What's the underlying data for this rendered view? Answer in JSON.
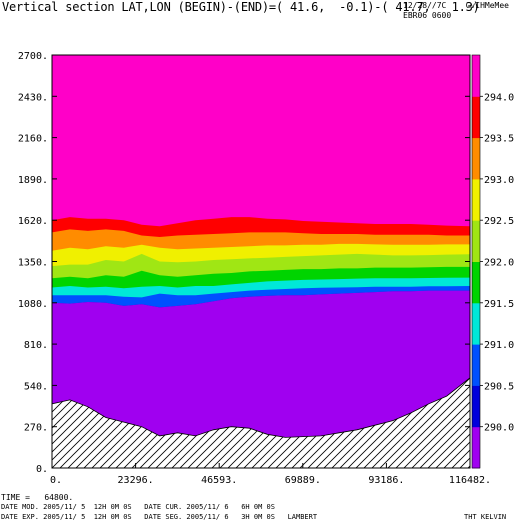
{
  "header": {
    "title": "Vertical section LAT,LON (BEGIN)-(END)=( 41.6,  -0.1)-( 41.7,   1.3)",
    "stamp_line1": "12/28//7C    CvIHMeMee",
    "stamp_line2": "EBR06 0600"
  },
  "footer": {
    "time": "TIME =   64800.",
    "line1": "DATE MOD. 2005/11/ 5  12H 0M 0S   DATE CUR. 2005/11/ 6   6H 0M 0S",
    "line2": "DATE EXP. 2005/11/ 5  12H 0M 0S   DATE SEG. 2005/11/ 6   3H 0M 0S   LAMBERT",
    "field": "THT KELVIN"
  },
  "chart_data": {
    "type": "area",
    "title": "Vertical section LAT,LON (BEGIN)-(END)=( 41.6,  -0.1)-( 41.7,   1.3)",
    "xlabel": "",
    "ylabel": "",
    "xlim": [
      0,
      116482
    ],
    "ylim": [
      0,
      2700
    ],
    "x_ticks": [
      "0.",
      "23296.",
      "46593.",
      "69889.",
      "93186.",
      "116482."
    ],
    "x_tick_values": [
      0,
      23296,
      46593,
      69889,
      93186,
      116482
    ],
    "y_ticks": [
      "0.",
      "270.",
      "540.",
      "810.",
      "1080.",
      "1350.",
      "1620.",
      "1890.",
      "2160.",
      "2430.",
      "2700."
    ],
    "y_tick_values": [
      0,
      270,
      540,
      810,
      1080,
      1350,
      1620,
      1890,
      2160,
      2430,
      2700
    ],
    "colorbar": {
      "labels": [
        "290.0",
        "290.5",
        "291.0",
        "291.5",
        "292.0",
        "292.5",
        "293.0",
        "293.5",
        "294.0"
      ],
      "levels": [
        290.0,
        290.5,
        291.0,
        291.5,
        292.0,
        292.5,
        293.0,
        293.5,
        294.0
      ],
      "colors": [
        "#a000f0",
        "#0000dc",
        "#0050ff",
        "#00e8d8",
        "#00d400",
        "#a0e614",
        "#f0f000",
        "#ff8c00",
        "#ff0000",
        "#ff00c8"
      ]
    },
    "x": [
      0,
      5000,
      10000,
      15000,
      20000,
      25000,
      30000,
      35000,
      40000,
      45000,
      50000,
      55000,
      60000,
      65000,
      70000,
      75000,
      80000,
      85000,
      90000,
      95000,
      100000,
      105000,
      110000,
      116482
    ],
    "terrain": [
      420,
      445,
      400,
      330,
      300,
      270,
      210,
      230,
      210,
      250,
      270,
      260,
      220,
      200,
      205,
      210,
      230,
      250,
      280,
      310,
      360,
      420,
      470,
      590
    ],
    "contours": [
      {
        "level": 290.0,
        "heights": [
          1080,
          1075,
          1085,
          1080,
          1060,
          1070,
          1050,
          1060,
          1070,
          1090,
          1110,
          1120,
          1125,
          1130,
          1130,
          1135,
          1140,
          1145,
          1150,
          1155,
          1155,
          1160,
          1160,
          1160
        ]
      },
      {
        "level": 290.5,
        "heights": [
          1130,
          1130,
          1130,
          1130,
          1120,
          1115,
          1140,
          1130,
          1130,
          1140,
          1150,
          1160,
          1165,
          1170,
          1175,
          1178,
          1180,
          1182,
          1185,
          1185,
          1185,
          1188,
          1188,
          1190
        ]
      },
      {
        "level": 291.0,
        "heights": [
          1180,
          1190,
          1180,
          1185,
          1175,
          1185,
          1190,
          1180,
          1190,
          1190,
          1200,
          1210,
          1220,
          1225,
          1230,
          1232,
          1235,
          1238,
          1240,
          1240,
          1240,
          1242,
          1244,
          1245
        ]
      },
      {
        "level": 291.5,
        "heights": [
          1240,
          1250,
          1240,
          1260,
          1250,
          1290,
          1260,
          1250,
          1260,
          1270,
          1275,
          1285,
          1290,
          1295,
          1300,
          1300,
          1305,
          1305,
          1310,
          1310,
          1310,
          1312,
          1315,
          1315
        ]
      },
      {
        "level": 292.0,
        "heights": [
          1320,
          1330,
          1330,
          1360,
          1350,
          1400,
          1350,
          1345,
          1350,
          1360,
          1365,
          1370,
          1375,
          1380,
          1385,
          1390,
          1395,
          1400,
          1395,
          1390,
          1390,
          1392,
          1395,
          1398
        ]
      },
      {
        "level": 292.5,
        "heights": [
          1420,
          1440,
          1430,
          1450,
          1440,
          1460,
          1440,
          1430,
          1435,
          1440,
          1445,
          1450,
          1455,
          1455,
          1460,
          1460,
          1465,
          1465,
          1462,
          1460,
          1460,
          1460,
          1462,
          1462
        ]
      },
      {
        "level": 293.0,
        "heights": [
          1540,
          1560,
          1550,
          1560,
          1550,
          1520,
          1510,
          1520,
          1525,
          1530,
          1535,
          1540,
          1540,
          1540,
          1535,
          1530,
          1530,
          1530,
          1525,
          1525,
          1525,
          1525,
          1520,
          1520
        ]
      },
      {
        "level": 293.5,
        "heights": [
          1620,
          1640,
          1630,
          1630,
          1620,
          1590,
          1580,
          1600,
          1620,
          1630,
          1640,
          1640,
          1630,
          1625,
          1615,
          1610,
          1605,
          1600,
          1595,
          1595,
          1595,
          1590,
          1585,
          1580
        ]
      },
      {
        "level": 294.0,
        "heights": [
          1670,
          1700,
          1690,
          1690,
          1680,
          1650,
          1640,
          1660,
          1680,
          1690,
          1700,
          1690,
          1685,
          1680,
          1670,
          1665,
          1660,
          1655,
          1650,
          1645,
          1650,
          1650,
          1645,
          1640
        ]
      }
    ]
  }
}
